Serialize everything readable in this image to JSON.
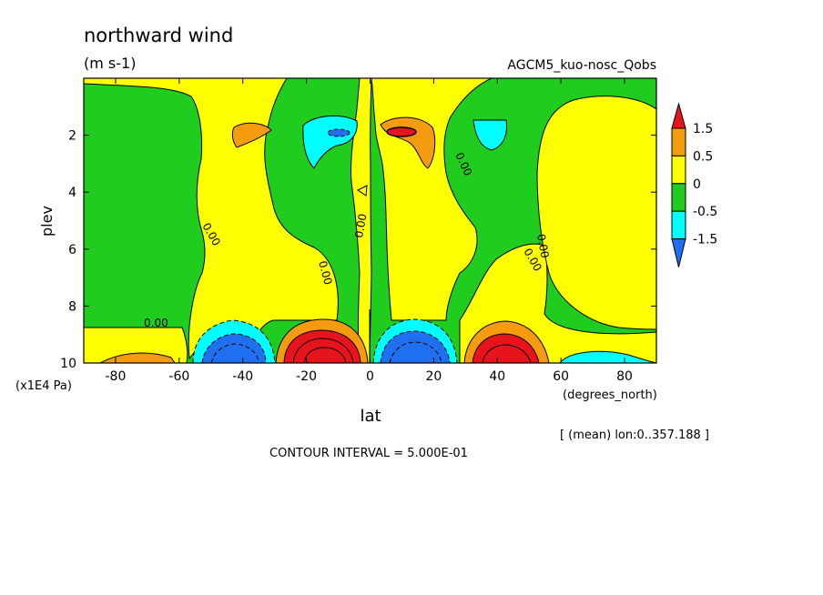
{
  "title": "northward wind",
  "units": "(m s-1)",
  "run_name": "AGCM5_kuo-nosc_Qobs",
  "footer_note": "[ (mean) lon:0..357.188 ]",
  "contour_interval": "CONTOUR INTERVAL = 5.000E-01",
  "chart_data": {
    "type": "heatmap",
    "xlabel": "lat",
    "x_units": "(degrees_north)",
    "ylabel": "plev",
    "y_units": "(x1E4 Pa)",
    "xlim": [
      -90,
      90
    ],
    "ylim": [
      0,
      10
    ],
    "y_inverted": true,
    "x_ticks": [
      -80,
      -60,
      -40,
      -20,
      0,
      20,
      40,
      60,
      80
    ],
    "x_tick_labels": [
      "-80",
      "-60",
      "-40",
      "-20",
      "0",
      "20",
      "40",
      "60",
      "80"
    ],
    "y_ticks": [
      2,
      4,
      6,
      8,
      10
    ],
    "y_tick_labels": [
      "2",
      "4",
      "6",
      "8",
      "10"
    ],
    "colorbar": {
      "labels": [
        "1.5",
        "0.5",
        "0",
        "-0.5",
        "-1.5"
      ],
      "bins": [
        {
          "range": "> 1.5",
          "color": "#e8141b"
        },
        {
          "range": "0.5 to 1.5",
          "color": "#f59b10"
        },
        {
          "range": "0 to 0.5",
          "color": "#ffff00"
        },
        {
          "range": "-0.5 to 0",
          "color": "#20cc1e"
        },
        {
          "range": "-1.5 to -0.5",
          "color": "#00ffff"
        },
        {
          "range": "< -1.5",
          "color": "#1f70f0"
        }
      ]
    },
    "contour_labels": [
      "0.00",
      "0.00",
      "0.00",
      "0.00",
      "0.00",
      "0.00",
      "0.00"
    ],
    "features": [
      {
        "name": "upper jet-level max",
        "lat": 10,
        "plev": 2,
        "value": 1.5
      },
      {
        "name": "upper jet-level min",
        "lat": -10,
        "plev": 2,
        "value": -1.5
      },
      {
        "name": "surface max",
        "lat": -13,
        "plev": 9.5,
        "value": 1.5
      },
      {
        "name": "surface max",
        "lat": 42,
        "plev": 9.6,
        "value": 1.5
      },
      {
        "name": "surface min",
        "lat": 10,
        "plev": 9.5,
        "value": -1.5
      },
      {
        "name": "surface min",
        "lat": -40,
        "plev": 9.6,
        "value": -1.5
      }
    ]
  }
}
